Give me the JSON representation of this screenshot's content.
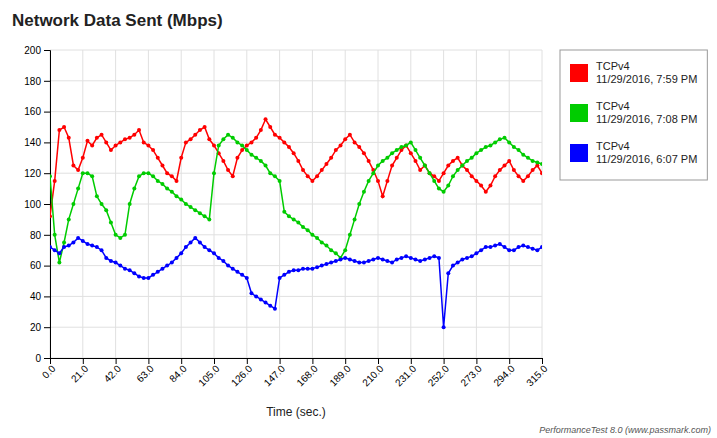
{
  "chart_data": {
    "type": "line",
    "title": "Network Data Sent (Mbps)",
    "x_label": "Time (sec.)",
    "annotations": [
      "PerformanceTest 8.0 (www.passmark.com)"
    ],
    "xlim": [
      0,
      315
    ],
    "ylim": [
      0,
      200
    ],
    "xticks": [
      {
        "value": 0,
        "label": "0.0"
      },
      {
        "value": 21,
        "label": "21.0"
      },
      {
        "value": 42,
        "label": "42.0"
      },
      {
        "value": 63,
        "label": "63.0"
      },
      {
        "value": 84,
        "label": "84.0"
      },
      {
        "value": 105,
        "label": "105.0"
      },
      {
        "value": 126,
        "label": "126.0"
      },
      {
        "value": 147,
        "label": "147.0"
      },
      {
        "value": 168,
        "label": "168.0"
      },
      {
        "value": 189,
        "label": "189.0"
      },
      {
        "value": 210,
        "label": "210.0"
      },
      {
        "value": 231,
        "label": "231.0"
      },
      {
        "value": 252,
        "label": "252.0"
      },
      {
        "value": 273,
        "label": "273.0"
      },
      {
        "value": 294,
        "label": "294.0"
      },
      {
        "value": 315,
        "label": "315.0"
      }
    ],
    "yticks": [
      0,
      20,
      40,
      60,
      80,
      100,
      120,
      140,
      160,
      180,
      200
    ],
    "grid": true,
    "legend": "right",
    "marker": "circle",
    "x": [
      0,
      3,
      6,
      9,
      12,
      15,
      18,
      21,
      24,
      27,
      30,
      33,
      36,
      39,
      42,
      45,
      48,
      51,
      54,
      57,
      60,
      63,
      66,
      69,
      72,
      75,
      78,
      81,
      84,
      87,
      90,
      93,
      96,
      99,
      102,
      105,
      108,
      111,
      114,
      117,
      120,
      123,
      126,
      129,
      132,
      135,
      138,
      141,
      144,
      147,
      150,
      153,
      156,
      159,
      162,
      165,
      168,
      171,
      174,
      177,
      180,
      183,
      186,
      189,
      192,
      195,
      198,
      201,
      204,
      207,
      210,
      213,
      216,
      219,
      222,
      225,
      228,
      231,
      234,
      237,
      240,
      243,
      246,
      249,
      252,
      255,
      258,
      261,
      264,
      267,
      270,
      273,
      276,
      279,
      282,
      285,
      288,
      291,
      294,
      297,
      300,
      303,
      306,
      309,
      312,
      315
    ],
    "series": [
      {
        "name": "TCPv4\n11/29/2016, 7:59 PM",
        "color": "#FF0000",
        "values": [
          92,
          115,
          148,
          150,
          143,
          125,
          122,
          130,
          141,
          138,
          143,
          145,
          140,
          135,
          138,
          140,
          142,
          143,
          145,
          148,
          140,
          138,
          135,
          130,
          125,
          120,
          118,
          115,
          130,
          140,
          142,
          145,
          148,
          150,
          142,
          138,
          133,
          128,
          122,
          118,
          130,
          135,
          138,
          140,
          143,
          148,
          155,
          150,
          145,
          143,
          140,
          137,
          133,
          128,
          122,
          118,
          115,
          118,
          122,
          126,
          130,
          135,
          138,
          142,
          145,
          140,
          137,
          133,
          128,
          122,
          115,
          105,
          115,
          125,
          130,
          135,
          138,
          133,
          128,
          122,
          125,
          120,
          118,
          115,
          120,
          125,
          128,
          130,
          125,
          122,
          118,
          115,
          112,
          108,
          112,
          118,
          122,
          125,
          128,
          122,
          118,
          115,
          118,
          122,
          125,
          120
        ]
      },
      {
        "name": "TCPv4\n11/29/2016, 7:08 PM",
        "color": "#00CC00",
        "values": [
          118,
          80,
          62,
          75,
          90,
          100,
          110,
          120,
          120,
          118,
          105,
          100,
          96,
          88,
          80,
          78,
          80,
          100,
          110,
          118,
          120,
          120,
          118,
          115,
          113,
          110,
          108,
          105,
          103,
          100,
          98,
          96,
          94,
          92,
          90,
          120,
          138,
          142,
          145,
          143,
          140,
          138,
          135,
          132,
          130,
          128,
          125,
          120,
          118,
          115,
          95,
          92,
          90,
          88,
          85,
          83,
          80,
          78,
          75,
          73,
          70,
          68,
          65,
          70,
          80,
          90,
          100,
          108,
          115,
          120,
          125,
          128,
          130,
          133,
          135,
          137,
          138,
          140,
          135,
          130,
          125,
          120,
          115,
          110,
          108,
          112,
          118,
          122,
          125,
          128,
          130,
          133,
          135,
          137,
          138,
          140,
          142,
          143,
          140,
          137,
          135,
          132,
          130,
          128,
          127,
          126
        ]
      },
      {
        "name": "TCPv4\n11/29/2016, 6:07 PM",
        "color": "#0000FF",
        "values": [
          72,
          70,
          68,
          72,
          73,
          75,
          78,
          76,
          74,
          73,
          72,
          70,
          65,
          63,
          62,
          60,
          58,
          57,
          55,
          53,
          52,
          52,
          54,
          56,
          58,
          60,
          62,
          65,
          68,
          72,
          75,
          78,
          75,
          72,
          70,
          68,
          65,
          63,
          60,
          58,
          56,
          54,
          52,
          42,
          40,
          38,
          36,
          34,
          32,
          52,
          54,
          56,
          57,
          57,
          58,
          58,
          58,
          59,
          60,
          61,
          62,
          63,
          64,
          65,
          64,
          63,
          62,
          62,
          63,
          64,
          65,
          64,
          63,
          62,
          64,
          65,
          66,
          65,
          64,
          63,
          64,
          65,
          66,
          65,
          20,
          55,
          60,
          62,
          64,
          65,
          66,
          68,
          70,
          72,
          72,
          73,
          74,
          72,
          70,
          70,
          72,
          73,
          72,
          71,
          70,
          72
        ]
      }
    ]
  }
}
